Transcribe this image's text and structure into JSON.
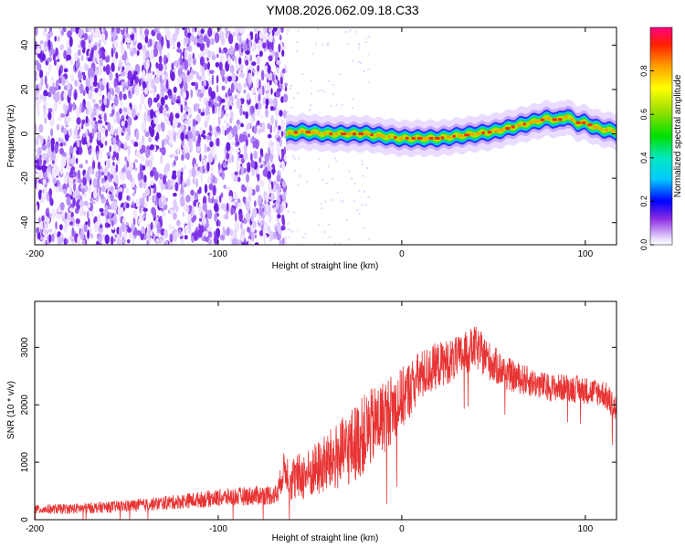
{
  "title": "YM08.2026.062.09.18.C33",
  "chart_data": [
    {
      "type": "heatmap",
      "name": "spectrogram",
      "xlabel": "Height of straight line (km)",
      "ylabel": "Frequency (Hz)",
      "xlim": [
        -200,
        117
      ],
      "ylim": [
        -50,
        48
      ],
      "xticks": [
        -200,
        -100,
        0,
        100
      ],
      "yticks": [
        -40,
        -20,
        0,
        20,
        40
      ],
      "noise_region_x": [
        -200,
        -63
      ],
      "ridge": {
        "x": [
          -63,
          -55,
          -40,
          -30,
          -20,
          -10,
          0,
          10,
          20,
          30,
          40,
          50,
          60,
          70,
          80,
          85,
          90,
          95,
          100,
          105,
          110,
          117
        ],
        "y": [
          0,
          1,
          0,
          0,
          0,
          -1,
          -2,
          -2,
          -2,
          -1,
          0,
          1,
          3,
          5,
          7,
          6,
          8,
          5,
          5,
          3,
          2,
          1
        ]
      },
      "colorbar": {
        "label": "Normalized spectral amplitude",
        "range": [
          0,
          1
        ],
        "ticks": [
          "0.0",
          "0.2",
          "0.4",
          "0.6",
          "0.8"
        ],
        "tick_values": [
          0.0,
          0.2,
          0.4,
          0.6,
          0.8
        ]
      },
      "grid": false
    },
    {
      "type": "line",
      "name": "snr",
      "xlabel": "Height of straight line (km)",
      "ylabel": "SNR (10 * v/v)",
      "xlim": [
        -200,
        117
      ],
      "ylim": [
        0,
        3800
      ],
      "xticks": [
        -200,
        -100,
        0,
        100
      ],
      "yticks": [
        0,
        1000,
        2000,
        3000
      ],
      "color": "#e83434",
      "envelope": {
        "x": [
          -200,
          -180,
          -160,
          -140,
          -120,
          -100,
          -80,
          -68,
          -64,
          -60,
          -50,
          -40,
          -30,
          -20,
          -10,
          0,
          10,
          20,
          30,
          40,
          50,
          60,
          70,
          80,
          90,
          100,
          110,
          117
        ],
        "mean": [
          180,
          190,
          220,
          260,
          320,
          380,
          420,
          440,
          900,
          700,
          800,
          1000,
          1200,
          1500,
          1800,
          2100,
          2500,
          2700,
          2800,
          3000,
          2700,
          2500,
          2400,
          2300,
          2300,
          2250,
          2200,
          1900
        ],
        "spread": [
          80,
          90,
          100,
          110,
          130,
          150,
          170,
          180,
          300,
          400,
          450,
          550,
          650,
          700,
          650,
          550,
          450,
          400,
          380,
          380,
          330,
          280,
          260,
          240,
          240,
          240,
          240,
          300
        ]
      },
      "grid": false
    }
  ]
}
